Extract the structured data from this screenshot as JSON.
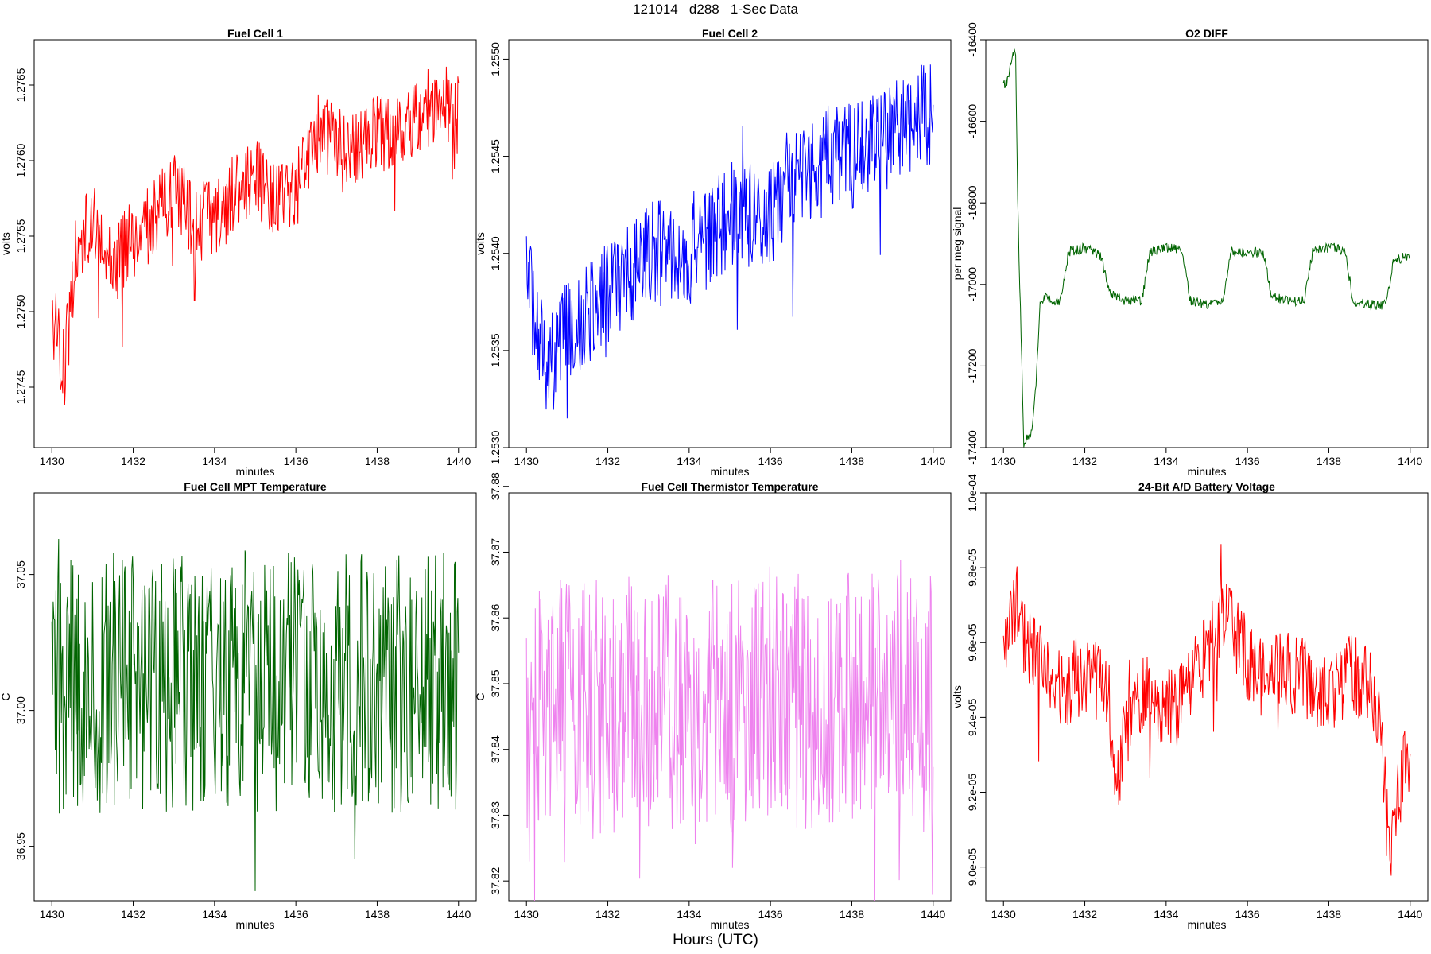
{
  "figure": {
    "title": "121014   d288   1-Sec Data",
    "xlabel": "Hours (UTC)"
  },
  "chart_data": [
    {
      "type": "line",
      "title": "Fuel Cell 1",
      "xlabel": "minutes",
      "ylabel": "volts",
      "color": "#ff0000",
      "xlim": [
        1430,
        1440
      ],
      "ylim": [
        1.2741,
        1.2768
      ],
      "xticks": [
        1430,
        1432,
        1434,
        1436,
        1438,
        1440
      ],
      "xtick_labels": [
        "1430",
        "1432",
        "1434",
        "1436",
        "1438",
        "1440"
      ],
      "yticks": [
        1.2745,
        1.275,
        1.2755,
        1.276,
        1.2765
      ],
      "ytick_labels": [
        "1.2745",
        "1.2750",
        "1.2755",
        "1.2760",
        "1.2765"
      ],
      "series": [
        {
          "x": [
            1430,
            1430.3,
            1430.6,
            1431,
            1431.5,
            1432,
            1432.5,
            1433,
            1433.5,
            1434,
            1434.5,
            1435,
            1435.5,
            1436,
            1436.5,
            1437,
            1437.5,
            1438,
            1438.5,
            1439,
            1439.5,
            1440
          ],
          "y": [
            1.275,
            1.2746,
            1.2754,
            1.2756,
            1.2753,
            1.2755,
            1.2756,
            1.2758,
            1.2756,
            1.2756,
            1.2758,
            1.2759,
            1.2757,
            1.2758,
            1.2762,
            1.2761,
            1.2761,
            1.2762,
            1.2762,
            1.2763,
            1.2764,
            1.2763
          ]
        }
      ]
    },
    {
      "type": "line",
      "title": "Fuel Cell 2",
      "xlabel": "minutes",
      "ylabel": "volts",
      "color": "#0000ff",
      "xlim": [
        1430,
        1440
      ],
      "ylim": [
        1.253,
        1.2551
      ],
      "xticks": [
        1430,
        1432,
        1434,
        1436,
        1438,
        1440
      ],
      "xtick_labels": [
        "1430",
        "1432",
        "1434",
        "1436",
        "1438",
        "1440"
      ],
      "yticks": [
        1.253,
        1.2535,
        1.254,
        1.2545,
        1.255
      ],
      "ytick_labels": [
        "1.2530",
        "1.2535",
        "1.2540",
        "1.2545",
        "1.2550"
      ],
      "series": [
        {
          "x": [
            1430,
            1430.2,
            1430.5,
            1431,
            1431.5,
            1432,
            1432.5,
            1433,
            1433.5,
            1434,
            1434.5,
            1435,
            1435.5,
            1436,
            1436.5,
            1437,
            1437.5,
            1438,
            1438.5,
            1439,
            1439.5,
            1440
          ],
          "y": [
            1.254,
            1.2536,
            1.2534,
            1.2536,
            1.2537,
            1.2538,
            1.2539,
            1.254,
            1.254,
            1.254,
            1.2541,
            1.2542,
            1.2542,
            1.2542,
            1.2544,
            1.2544,
            1.2545,
            1.2545,
            1.2546,
            1.2546,
            1.2547,
            1.2547
          ]
        }
      ]
    },
    {
      "type": "line",
      "title": "O2 DIFF",
      "xlabel": "minutes",
      "ylabel": "per meg signal",
      "color": "#006400",
      "xlim": [
        1430,
        1440
      ],
      "ylim": [
        -17400,
        -16400
      ],
      "xticks": [
        1430,
        1432,
        1434,
        1436,
        1438,
        1440
      ],
      "xtick_labels": [
        "1430",
        "1432",
        "1434",
        "1436",
        "1438",
        "1440"
      ],
      "yticks": [
        -17400,
        -17200,
        -17000,
        -16800,
        -16600,
        -16400
      ],
      "ytick_labels": [
        "-17400",
        "-17200",
        "-17000",
        "-16800",
        "-16600",
        "-16400"
      ],
      "series": [
        {
          "x": [
            1430,
            1430.1,
            1430.2,
            1430.25,
            1430.3,
            1430.35,
            1430.5,
            1430.7,
            1430.8,
            1430.9,
            1431,
            1431.2,
            1431.4,
            1431.6,
            1432,
            1432.2,
            1432.4,
            1432.6,
            1433,
            1433.2,
            1433.4,
            1433.6,
            1434,
            1434.2,
            1434.4,
            1434.6,
            1435,
            1435.2,
            1435.4,
            1435.6,
            1436,
            1436.2,
            1436.4,
            1436.6,
            1437,
            1437.2,
            1437.4,
            1437.6,
            1438,
            1438.2,
            1438.4,
            1438.6,
            1439,
            1439.2,
            1439.4,
            1439.6,
            1440
          ],
          "y": [
            -16510,
            -16500,
            -16450,
            -16430,
            -16440,
            -16800,
            -17390,
            -17360,
            -17250,
            -17050,
            -17030,
            -17040,
            -17040,
            -16920,
            -16910,
            -16920,
            -16930,
            -17020,
            -17040,
            -17040,
            -17040,
            -16920,
            -16910,
            -16910,
            -16920,
            -17040,
            -17050,
            -17040,
            -17040,
            -16920,
            -16920,
            -16920,
            -16930,
            -17030,
            -17040,
            -17040,
            -17040,
            -16920,
            -16910,
            -16910,
            -16920,
            -17040,
            -17050,
            -17050,
            -17050,
            -16940,
            -16930
          ]
        }
      ]
    },
    {
      "type": "line",
      "title": "Fuel Cell MPT Temperature",
      "xlabel": "minutes",
      "ylabel": "C",
      "color": "#006400",
      "xlim": [
        1430,
        1440
      ],
      "ylim": [
        36.93,
        37.08
      ],
      "xticks": [
        1430,
        1432,
        1434,
        1436,
        1438,
        1440
      ],
      "xtick_labels": [
        "1430",
        "1432",
        "1434",
        "1436",
        "1438",
        "1440"
      ],
      "yticks": [
        36.95,
        37.0,
        37.05
      ],
      "ytick_labels": [
        "36.95",
        "37.00",
        "37.05"
      ],
      "series": [
        {
          "x": [
            1430,
            1431,
            1432,
            1433,
            1434,
            1435,
            1436,
            1437,
            1438,
            1439,
            1440
          ],
          "y": [
            37.01,
            37.01,
            37.01,
            37.01,
            37.01,
            37.01,
            37.01,
            37.01,
            37.01,
            37.01,
            37.01
          ]
        }
      ]
    },
    {
      "type": "line",
      "title": "Fuel Cell Thermistor Temperature",
      "xlabel": "minutes",
      "ylabel": "C",
      "color": "#ee82ee",
      "xlim": [
        1430,
        1440
      ],
      "ylim": [
        37.817,
        37.879
      ],
      "xticks": [
        1430,
        1432,
        1434,
        1436,
        1438,
        1440
      ],
      "xtick_labels": [
        "1430",
        "1432",
        "1434",
        "1436",
        "1438",
        "1440"
      ],
      "yticks": [
        37.82,
        37.83,
        37.84,
        37.85,
        37.86,
        37.87,
        37.88
      ],
      "ytick_labels": [
        "37.82",
        "37.83",
        "37.84",
        "37.85",
        "37.86",
        "37.87",
        "37.88"
      ],
      "series": [
        {
          "x": [
            1430,
            1431,
            1432,
            1433,
            1434,
            1435,
            1436,
            1437,
            1438,
            1439,
            1440
          ],
          "y": [
            37.846,
            37.846,
            37.846,
            37.847,
            37.847,
            37.847,
            37.848,
            37.847,
            37.847,
            37.847,
            37.847
          ]
        }
      ]
    },
    {
      "type": "line",
      "title": "24-Bit A/D Battery Voltage",
      "xlabel": "minutes",
      "ylabel": "volts",
      "color": "#ff0000",
      "xlim": [
        1430,
        1440
      ],
      "ylim": [
        8.91e-05,
        0.0001
      ],
      "xticks": [
        1430,
        1432,
        1434,
        1436,
        1438,
        1440
      ],
      "xtick_labels": [
        "1430",
        "1432",
        "1434",
        "1436",
        "1438",
        "1440"
      ],
      "yticks": [
        9e-05,
        9.2e-05,
        9.4e-05,
        9.6e-05,
        9.8e-05,
        0.0001
      ],
      "ytick_labels": [
        "9.0e-05",
        "9.2e-05",
        "9.4e-05",
        "9.6e-05",
        "9.8e-05",
        "1.0e-04"
      ],
      "series": [
        {
          "x": [
            1430,
            1430.3,
            1430.5,
            1431,
            1431.5,
            1432,
            1432.5,
            1432.8,
            1433,
            1433.5,
            1434,
            1434.5,
            1435,
            1435.4,
            1435.8,
            1436,
            1436.5,
            1437,
            1437.5,
            1438,
            1438.5,
            1439,
            1439.3,
            1439.5,
            1439.7,
            1440
          ],
          "y": [
            9.55e-05,
            9.72e-05,
            9.62e-05,
            9.52e-05,
            9.48e-05,
            9.52e-05,
            9.48e-05,
            9.25e-05,
            9.36e-05,
            9.5e-05,
            9.42e-05,
            9.46e-05,
            9.58e-05,
            9.68e-05,
            9.6e-05,
            9.55e-05,
            9.54e-05,
            9.52e-05,
            9.5e-05,
            9.45e-05,
            9.52e-05,
            9.48e-05,
            9.35e-05,
            8.98e-05,
            9.18e-05,
            9.32e-05
          ]
        }
      ]
    }
  ]
}
